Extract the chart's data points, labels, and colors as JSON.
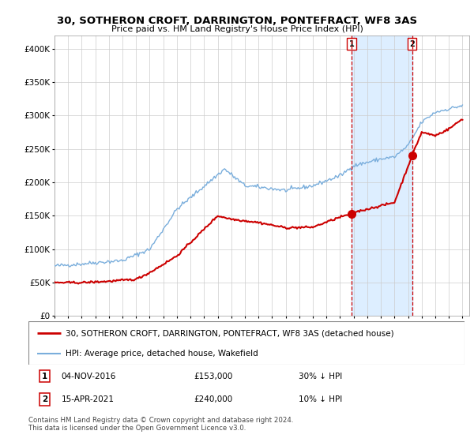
{
  "title": "30, SOTHERON CROFT, DARRINGTON, PONTEFRACT, WF8 3AS",
  "subtitle": "Price paid vs. HM Land Registry's House Price Index (HPI)",
  "footer": "Contains HM Land Registry data © Crown copyright and database right 2024.\nThis data is licensed under the Open Government Licence v3.0.",
  "legend_line1": "30, SOTHERON CROFT, DARRINGTON, PONTEFRACT, WF8 3AS (detached house)",
  "legend_line2": "HPI: Average price, detached house, Wakefield",
  "sale1_date": "04-NOV-2016",
  "sale1_price": 153000,
  "sale1_hpi_diff": "30% ↓ HPI",
  "sale2_date": "15-APR-2021",
  "sale2_price": 240000,
  "sale2_hpi_diff": "10% ↓ HPI",
  "sale1_x": 2016.84,
  "sale2_x": 2021.29,
  "red_line_color": "#cc0000",
  "blue_line_color": "#7aaedc",
  "sale_dot_color": "#cc0000",
  "vline_color": "#cc0000",
  "shade_color": "#ddeeff",
  "background_color": "#ffffff",
  "grid_color": "#cccccc",
  "ylim": [
    0,
    420000
  ],
  "xlim": [
    1995,
    2025.5
  ],
  "yticks": [
    0,
    50000,
    100000,
    150000,
    200000,
    250000,
    300000,
    350000,
    400000
  ],
  "ytick_labels": [
    "£0",
    "£50K",
    "£100K",
    "£150K",
    "£200K",
    "£250K",
    "£300K",
    "£350K",
    "£400K"
  ]
}
